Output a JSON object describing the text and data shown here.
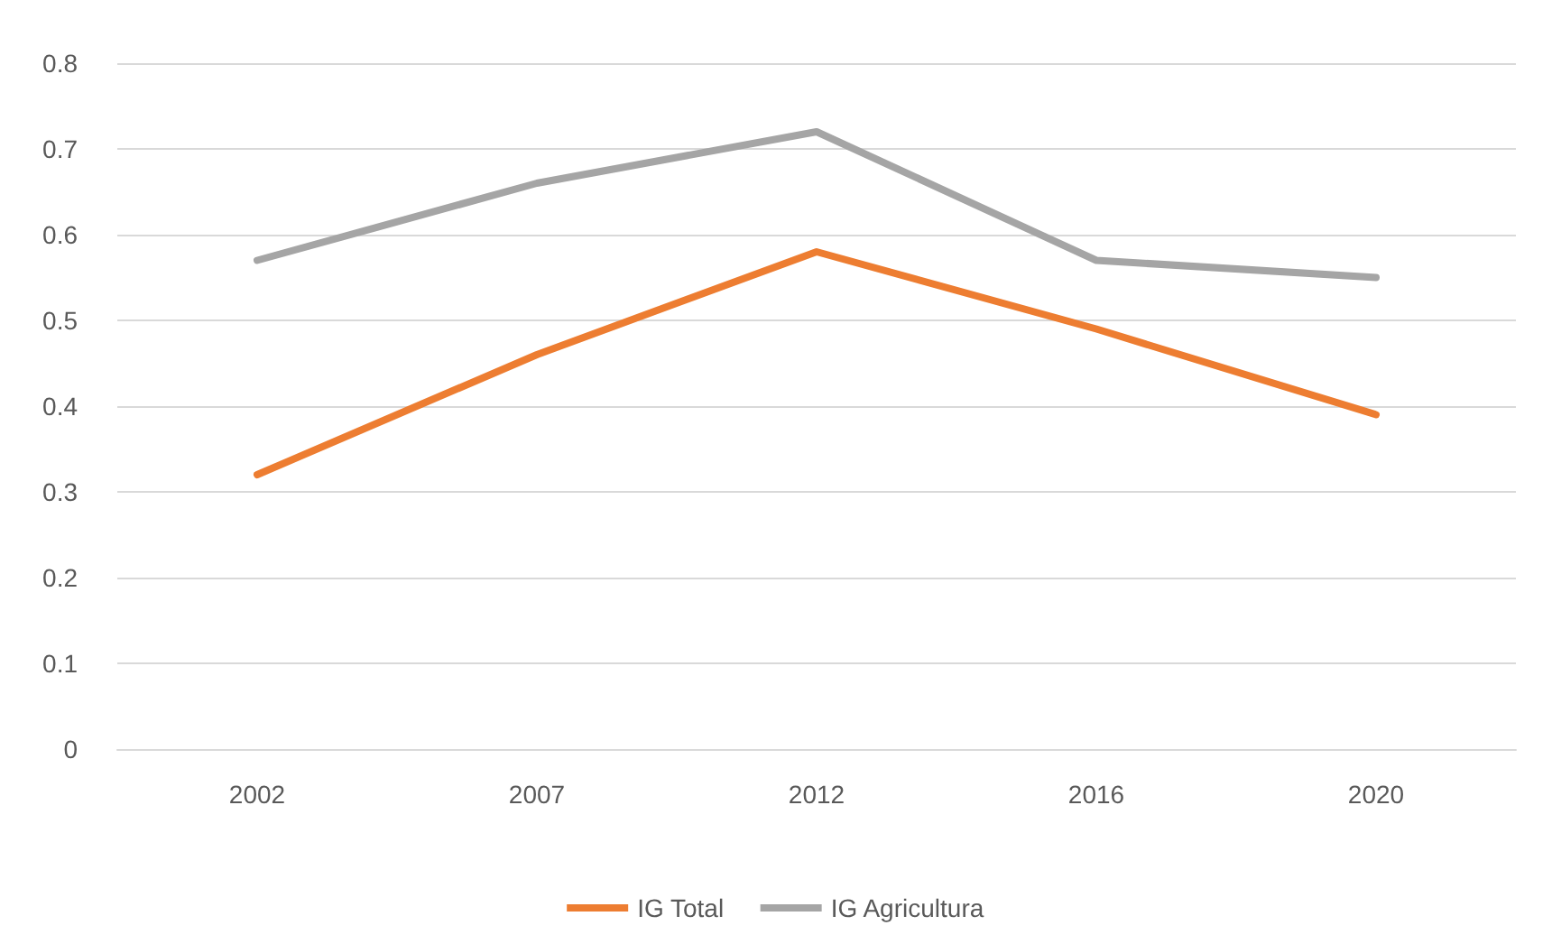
{
  "chart_data": {
    "type": "line",
    "categories": [
      "2002",
      "2007",
      "2012",
      "2016",
      "2020"
    ],
    "series": [
      {
        "name": "IG Total",
        "color": "#ed7d31",
        "values": [
          0.32,
          0.46,
          0.58,
          0.49,
          0.39
        ]
      },
      {
        "name": "IG Agricultura",
        "color": "#a5a5a5",
        "values": [
          0.57,
          0.66,
          0.72,
          0.57,
          0.55
        ]
      }
    ],
    "ylim": [
      0,
      0.8
    ],
    "yticks": [
      0,
      0.1,
      0.2,
      0.3,
      0.4,
      0.5,
      0.6,
      0.7,
      0.8
    ],
    "grid": "y",
    "legend": "bottom",
    "marker": "none",
    "line_style": "solid"
  }
}
